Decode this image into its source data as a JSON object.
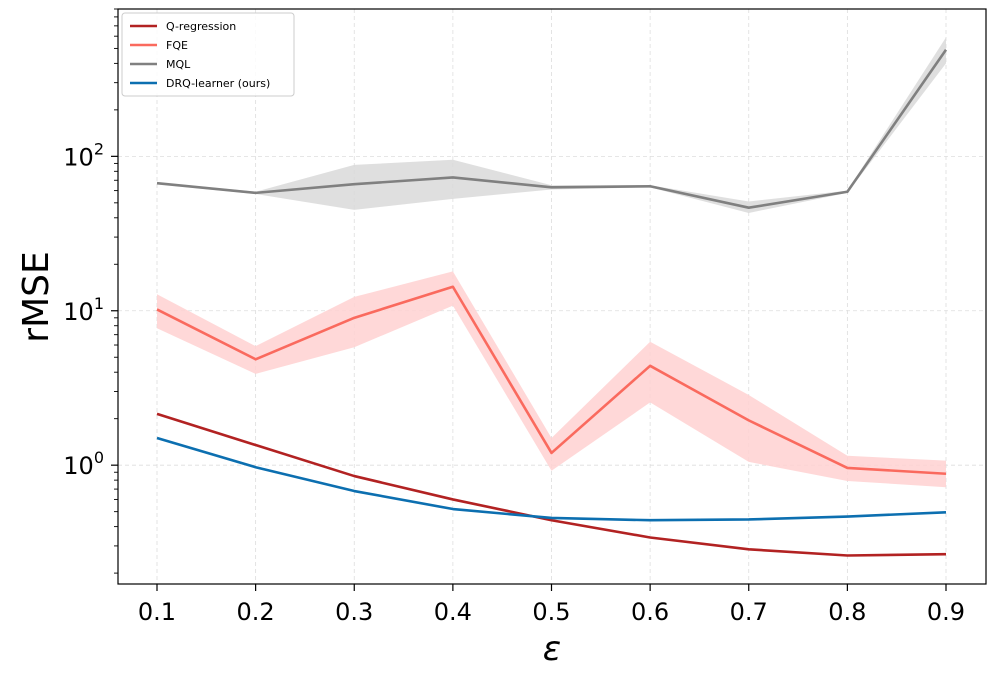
{
  "chart_data": {
    "type": "line",
    "title": "",
    "xlabel": "ε",
    "ylabel": "rMSE",
    "yscale": "log",
    "x": [
      0.1,
      0.2,
      0.3,
      0.4,
      0.5,
      0.6,
      0.7,
      0.8,
      0.9
    ],
    "x_tick_labels": [
      "0.1",
      "0.2",
      "0.3",
      "0.4",
      "0.5",
      "0.6",
      "0.7",
      "0.8",
      "0.9"
    ],
    "y_major_ticks": [
      {
        "value": 1,
        "base": "10",
        "exp": "0"
      },
      {
        "value": 10,
        "base": "10",
        "exp": "1"
      },
      {
        "value": 100,
        "base": "10",
        "exp": "2"
      }
    ],
    "ylim": [
      0.17,
      900
    ],
    "grid": true,
    "legend_position": "top-left",
    "series": [
      {
        "name": "Q-regression",
        "color": "#b22222",
        "values": [
          2.15,
          1.35,
          0.85,
          0.6,
          0.44,
          0.34,
          0.285,
          0.26,
          0.265
        ],
        "band": null
      },
      {
        "name": "FQE",
        "color": "#fa6a5e",
        "band_color": "#ffd1d1",
        "values": [
          10.2,
          4.85,
          9.0,
          14.3,
          1.2,
          4.4,
          1.95,
          0.96,
          0.88
        ],
        "band": {
          "lower": [
            7.7,
            3.9,
            5.8,
            10.8,
            0.92,
            2.55,
            1.05,
            0.79,
            0.72
          ],
          "upper": [
            12.8,
            5.9,
            12.3,
            18.0,
            1.5,
            6.3,
            2.85,
            1.15,
            1.07
          ]
        }
      },
      {
        "name": "MQL",
        "color": "#808080",
        "band_color": "#d9d9d9",
        "values": [
          67,
          58,
          66,
          73,
          63,
          64,
          46.5,
          59,
          490
        ],
        "band": {
          "lower": [
            66,
            57,
            45,
            53,
            61,
            63,
            43,
            58,
            400
          ],
          "upper": [
            68,
            59,
            88,
            95,
            65,
            65,
            51,
            60,
            590
          ]
        }
      },
      {
        "name": "DRQ-learner (ours)",
        "color": "#0c6fb0",
        "values": [
          1.5,
          0.97,
          0.68,
          0.52,
          0.455,
          0.44,
          0.445,
          0.465,
          0.495
        ],
        "band": null
      }
    ]
  }
}
